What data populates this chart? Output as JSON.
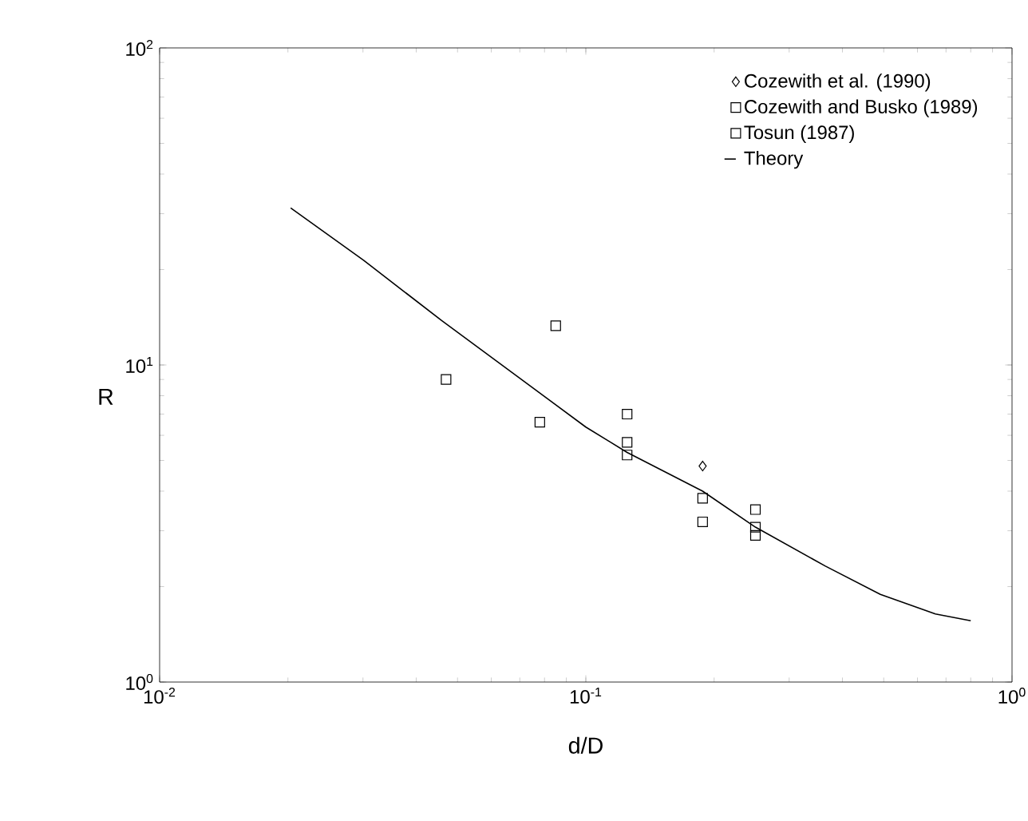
{
  "chart_data": {
    "type": "scatter",
    "xlabel": "d/D",
    "ylabel": "R",
    "log": "xy",
    "legend": "top right",
    "grid": false,
    "xlim": [
      0.01,
      1
    ],
    "ylim": [
      1,
      100
    ],
    "xticks": [
      {
        "value": 0.01,
        "label": "10$^{-2}$"
      },
      {
        "value": 0.1,
        "label": "10$^{-1}$"
      },
      {
        "value": 1,
        "label": "10$^{0}$"
      }
    ],
    "yticks": [
      {
        "value": 1,
        "label": "10$^{0}$"
      },
      {
        "value": 10,
        "label": "10$^{1}$"
      },
      {
        "value": 100,
        "label": "10$^{2}$"
      }
    ],
    "series": [
      {
        "name": "Cozewith et al. (1990)",
        "color": "#000000",
        "marker": "diamond",
        "x": [
          0.188
        ],
        "values": [
          4.8
        ]
      },
      {
        "name": "Cozewith and Busko (1989)",
        "color": "#000000",
        "marker": "square",
        "x": [
          0.047,
          0.078,
          0.125,
          0.125,
          0.188,
          0.188,
          0.25,
          0.25
        ],
        "values": [
          9.0,
          6.6,
          5.7,
          5.2,
          3.8,
          3.2,
          3.5,
          2.9
        ]
      },
      {
        "name": "Tosun (1987)",
        "color": "#000000",
        "marker": "square",
        "x": [
          0.085,
          0.125,
          0.25
        ],
        "values": [
          13.3,
          7.0,
          3.08
        ]
      },
      {
        "name": "Theory",
        "type": "line",
        "color": "#000000",
        "marker": "none",
        "line_style": "solid",
        "x": [
          0.0203,
          0.0301,
          0.0459,
          0.0695,
          0.1,
          0.125,
          0.188,
          0.25,
          0.365,
          0.491,
          0.661,
          0.8
        ],
        "values": [
          31.3,
          21.4,
          13.8,
          9.15,
          6.37,
          5.3,
          4.0,
          3.08,
          2.32,
          1.89,
          1.64,
          1.56
        ]
      }
    ]
  }
}
